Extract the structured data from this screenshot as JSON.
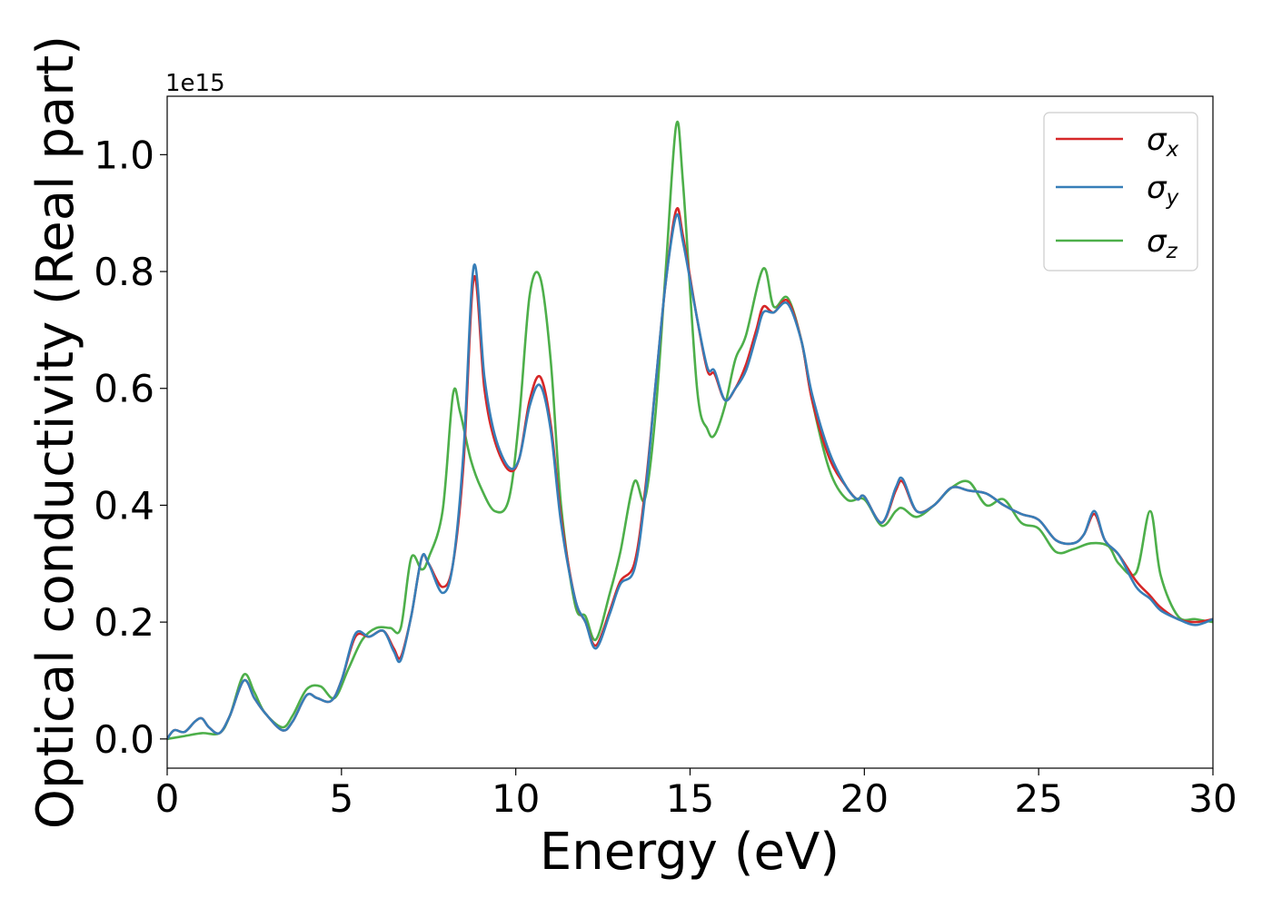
{
  "chart_data": {
    "type": "line",
    "title": "",
    "xlabel": "Energy (eV)",
    "ylabel": "Optical conductivity (Real part)",
    "offset_text": "1e15",
    "xlim": [
      0,
      30
    ],
    "ylim": [
      -0.05,
      1.1
    ],
    "x_ticks": [
      0,
      5,
      10,
      15,
      20,
      25,
      30
    ],
    "x_tick_labels": [
      "0",
      "5",
      "10",
      "15",
      "20",
      "25",
      "30"
    ],
    "y_ticks": [
      0.0,
      0.2,
      0.4,
      0.6,
      0.8,
      1.0
    ],
    "y_tick_labels": [
      "0.0",
      "0.2",
      "0.4",
      "0.6",
      "0.8",
      "1.0"
    ],
    "grid": false,
    "legend_position": "top-right",
    "series": [
      {
        "name": "σx",
        "symbol": "σ",
        "subscript": "x",
        "color": "#d62728",
        "points": [
          [
            0,
            0
          ],
          [
            0.2,
            0.015
          ],
          [
            0.5,
            0.012
          ],
          [
            0.8,
            0.03
          ],
          [
            1.0,
            0.035
          ],
          [
            1.2,
            0.02
          ],
          [
            1.5,
            0.01
          ],
          [
            1.8,
            0.04
          ],
          [
            2.2,
            0.1
          ],
          [
            2.5,
            0.07
          ],
          [
            2.8,
            0.045
          ],
          [
            3.3,
            0.015
          ],
          [
            3.6,
            0.03
          ],
          [
            4.0,
            0.075
          ],
          [
            4.3,
            0.07
          ],
          [
            4.7,
            0.065
          ],
          [
            5.0,
            0.1
          ],
          [
            5.4,
            0.175
          ],
          [
            5.8,
            0.175
          ],
          [
            6.2,
            0.185
          ],
          [
            6.5,
            0.155
          ],
          [
            6.7,
            0.14
          ],
          [
            7.0,
            0.21
          ],
          [
            7.3,
            0.31
          ],
          [
            7.5,
            0.3
          ],
          [
            7.9,
            0.26
          ],
          [
            8.2,
            0.3
          ],
          [
            8.5,
            0.47
          ],
          [
            8.8,
            0.79
          ],
          [
            9.1,
            0.6
          ],
          [
            9.4,
            0.51
          ],
          [
            9.8,
            0.46
          ],
          [
            10.1,
            0.48
          ],
          [
            10.4,
            0.58
          ],
          [
            10.7,
            0.62
          ],
          [
            11.0,
            0.54
          ],
          [
            11.3,
            0.38
          ],
          [
            11.7,
            0.24
          ],
          [
            12.0,
            0.2
          ],
          [
            12.3,
            0.16
          ],
          [
            12.7,
            0.22
          ],
          [
            13.0,
            0.27
          ],
          [
            13.4,
            0.3
          ],
          [
            13.7,
            0.42
          ],
          [
            14.0,
            0.6
          ],
          [
            14.3,
            0.78
          ],
          [
            14.6,
            0.905
          ],
          [
            14.8,
            0.86
          ],
          [
            15.2,
            0.72
          ],
          [
            15.5,
            0.63
          ],
          [
            15.7,
            0.625
          ],
          [
            16.0,
            0.58
          ],
          [
            16.3,
            0.6
          ],
          [
            16.6,
            0.64
          ],
          [
            16.9,
            0.7
          ],
          [
            17.1,
            0.74
          ],
          [
            17.4,
            0.73
          ],
          [
            17.8,
            0.75
          ],
          [
            18.2,
            0.68
          ],
          [
            18.5,
            0.58
          ],
          [
            19.0,
            0.48
          ],
          [
            19.5,
            0.43
          ],
          [
            19.8,
            0.41
          ],
          [
            20.0,
            0.415
          ],
          [
            20.5,
            0.37
          ],
          [
            20.9,
            0.425
          ],
          [
            21.1,
            0.44
          ],
          [
            21.5,
            0.39
          ],
          [
            22.0,
            0.4
          ],
          [
            22.5,
            0.43
          ],
          [
            23.0,
            0.425
          ],
          [
            23.5,
            0.42
          ],
          [
            24.0,
            0.4
          ],
          [
            24.5,
            0.385
          ],
          [
            25.0,
            0.375
          ],
          [
            25.5,
            0.34
          ],
          [
            26.0,
            0.335
          ],
          [
            26.3,
            0.35
          ],
          [
            26.6,
            0.385
          ],
          [
            26.9,
            0.34
          ],
          [
            27.3,
            0.315
          ],
          [
            27.8,
            0.27
          ],
          [
            28.2,
            0.245
          ],
          [
            28.5,
            0.225
          ],
          [
            29.0,
            0.205
          ],
          [
            29.5,
            0.2
          ],
          [
            30.0,
            0.205
          ]
        ]
      },
      {
        "name": "σy",
        "symbol": "σ",
        "subscript": "y",
        "color": "#377eb8",
        "points": [
          [
            0,
            0
          ],
          [
            0.2,
            0.015
          ],
          [
            0.5,
            0.012
          ],
          [
            0.8,
            0.03
          ],
          [
            1.0,
            0.035
          ],
          [
            1.2,
            0.02
          ],
          [
            1.5,
            0.01
          ],
          [
            1.8,
            0.04
          ],
          [
            2.2,
            0.1
          ],
          [
            2.5,
            0.07
          ],
          [
            2.8,
            0.045
          ],
          [
            3.3,
            0.015
          ],
          [
            3.6,
            0.03
          ],
          [
            4.0,
            0.075
          ],
          [
            4.3,
            0.07
          ],
          [
            4.7,
            0.065
          ],
          [
            5.0,
            0.1
          ],
          [
            5.4,
            0.18
          ],
          [
            5.8,
            0.175
          ],
          [
            6.2,
            0.185
          ],
          [
            6.5,
            0.15
          ],
          [
            6.7,
            0.135
          ],
          [
            7.0,
            0.21
          ],
          [
            7.3,
            0.31
          ],
          [
            7.5,
            0.3
          ],
          [
            7.9,
            0.25
          ],
          [
            8.2,
            0.3
          ],
          [
            8.5,
            0.49
          ],
          [
            8.8,
            0.81
          ],
          [
            9.1,
            0.62
          ],
          [
            9.4,
            0.52
          ],
          [
            9.8,
            0.465
          ],
          [
            10.1,
            0.48
          ],
          [
            10.4,
            0.57
          ],
          [
            10.7,
            0.605
          ],
          [
            11.0,
            0.53
          ],
          [
            11.3,
            0.37
          ],
          [
            11.7,
            0.24
          ],
          [
            12.0,
            0.2
          ],
          [
            12.3,
            0.155
          ],
          [
            12.7,
            0.215
          ],
          [
            13.0,
            0.265
          ],
          [
            13.4,
            0.29
          ],
          [
            13.7,
            0.41
          ],
          [
            14.0,
            0.6
          ],
          [
            14.3,
            0.78
          ],
          [
            14.6,
            0.895
          ],
          [
            14.8,
            0.85
          ],
          [
            15.2,
            0.72
          ],
          [
            15.5,
            0.635
          ],
          [
            15.7,
            0.63
          ],
          [
            16.0,
            0.58
          ],
          [
            16.3,
            0.6
          ],
          [
            16.6,
            0.63
          ],
          [
            16.9,
            0.69
          ],
          [
            17.1,
            0.73
          ],
          [
            17.4,
            0.73
          ],
          [
            17.8,
            0.745
          ],
          [
            18.2,
            0.68
          ],
          [
            18.5,
            0.59
          ],
          [
            19.0,
            0.49
          ],
          [
            19.5,
            0.43
          ],
          [
            19.8,
            0.41
          ],
          [
            20.0,
            0.415
          ],
          [
            20.5,
            0.37
          ],
          [
            20.9,
            0.43
          ],
          [
            21.1,
            0.445
          ],
          [
            21.5,
            0.39
          ],
          [
            22.0,
            0.4
          ],
          [
            22.5,
            0.43
          ],
          [
            23.0,
            0.425
          ],
          [
            23.5,
            0.42
          ],
          [
            24.0,
            0.4
          ],
          [
            24.5,
            0.385
          ],
          [
            25.0,
            0.375
          ],
          [
            25.5,
            0.34
          ],
          [
            26.0,
            0.335
          ],
          [
            26.3,
            0.35
          ],
          [
            26.6,
            0.39
          ],
          [
            26.9,
            0.34
          ],
          [
            27.3,
            0.315
          ],
          [
            27.8,
            0.26
          ],
          [
            28.2,
            0.24
          ],
          [
            28.5,
            0.22
          ],
          [
            29.0,
            0.205
          ],
          [
            29.5,
            0.195
          ],
          [
            30.0,
            0.205
          ]
        ]
      },
      {
        "name": "σz",
        "symbol": "σ",
        "subscript": "z",
        "color": "#4daf4a",
        "points": [
          [
            0,
            0
          ],
          [
            0.5,
            0.005
          ],
          [
            1.0,
            0.01
          ],
          [
            1.5,
            0.01
          ],
          [
            1.8,
            0.04
          ],
          [
            2.2,
            0.11
          ],
          [
            2.5,
            0.08
          ],
          [
            2.8,
            0.045
          ],
          [
            3.3,
            0.02
          ],
          [
            3.6,
            0.04
          ],
          [
            4.0,
            0.085
          ],
          [
            4.4,
            0.09
          ],
          [
            4.8,
            0.07
          ],
          [
            5.2,
            0.12
          ],
          [
            5.6,
            0.17
          ],
          [
            6.0,
            0.19
          ],
          [
            6.4,
            0.19
          ],
          [
            6.7,
            0.19
          ],
          [
            7.0,
            0.31
          ],
          [
            7.3,
            0.29
          ],
          [
            7.5,
            0.31
          ],
          [
            7.9,
            0.39
          ],
          [
            8.2,
            0.59
          ],
          [
            8.4,
            0.56
          ],
          [
            8.7,
            0.48
          ],
          [
            9.0,
            0.43
          ],
          [
            9.4,
            0.39
          ],
          [
            9.8,
            0.41
          ],
          [
            10.1,
            0.55
          ],
          [
            10.4,
            0.76
          ],
          [
            10.7,
            0.79
          ],
          [
            11.0,
            0.65
          ],
          [
            11.3,
            0.4
          ],
          [
            11.7,
            0.23
          ],
          [
            12.0,
            0.21
          ],
          [
            12.3,
            0.17
          ],
          [
            12.7,
            0.25
          ],
          [
            13.0,
            0.32
          ],
          [
            13.4,
            0.44
          ],
          [
            13.7,
            0.41
          ],
          [
            14.0,
            0.55
          ],
          [
            14.3,
            0.8
          ],
          [
            14.6,
            1.05
          ],
          [
            14.8,
            0.95
          ],
          [
            15.2,
            0.6
          ],
          [
            15.5,
            0.53
          ],
          [
            15.7,
            0.52
          ],
          [
            16.0,
            0.57
          ],
          [
            16.3,
            0.65
          ],
          [
            16.6,
            0.69
          ],
          [
            17.1,
            0.805
          ],
          [
            17.4,
            0.74
          ],
          [
            17.8,
            0.755
          ],
          [
            18.2,
            0.68
          ],
          [
            18.5,
            0.58
          ],
          [
            19.0,
            0.46
          ],
          [
            19.5,
            0.41
          ],
          [
            20.0,
            0.41
          ],
          [
            20.5,
            0.365
          ],
          [
            20.9,
            0.39
          ],
          [
            21.1,
            0.395
          ],
          [
            21.5,
            0.38
          ],
          [
            22.0,
            0.4
          ],
          [
            22.5,
            0.43
          ],
          [
            23.0,
            0.44
          ],
          [
            23.5,
            0.4
          ],
          [
            24.0,
            0.41
          ],
          [
            24.5,
            0.37
          ],
          [
            25.0,
            0.36
          ],
          [
            25.5,
            0.32
          ],
          [
            26.0,
            0.325
          ],
          [
            26.5,
            0.335
          ],
          [
            27.0,
            0.33
          ],
          [
            27.3,
            0.3
          ],
          [
            27.8,
            0.285
          ],
          [
            28.2,
            0.39
          ],
          [
            28.5,
            0.28
          ],
          [
            29.0,
            0.21
          ],
          [
            29.5,
            0.205
          ],
          [
            30.0,
            0.2
          ]
        ]
      }
    ]
  }
}
